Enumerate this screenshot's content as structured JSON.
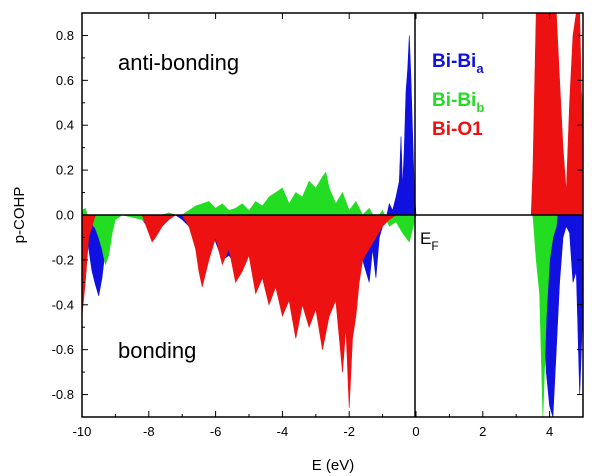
{
  "chart_data": {
    "type": "area",
    "xlabel": "E (eV)",
    "ylabel": "p-COHP",
    "xlim": [
      -10,
      5
    ],
    "ylim": [
      -0.9,
      0.9
    ],
    "xticks": [
      "-10",
      "-8",
      "-6",
      "-4",
      "-2",
      "0",
      "2",
      "4"
    ],
    "yticks": [
      "-0.8",
      "-0.6",
      "-0.4",
      "-0.2",
      "0.0",
      "0.2",
      "0.4",
      "0.6",
      "0.8"
    ],
    "grid": false,
    "legend_position": "top-right",
    "annotations": {
      "top": "anti-bonding",
      "bottom": "bonding",
      "fermi_main": "E",
      "fermi_sub": "F"
    },
    "series": [
      {
        "name_main": "Bi-Bi",
        "name_sub": "a",
        "color": "#1010e0",
        "x": [
          -10.0,
          -9.9,
          -9.8,
          -9.7,
          -9.6,
          -9.5,
          -9.4,
          -9.3,
          -9.2,
          -9.0,
          -8.5,
          -8.2,
          -8.0,
          -7.8,
          -7.6,
          -7.4,
          -7.2,
          -7.0,
          -6.8,
          -6.6,
          -6.5,
          -6.4,
          -6.3,
          -6.2,
          -6.0,
          -5.8,
          -5.6,
          -5.4,
          -5.2,
          -5.0,
          -4.8,
          -4.6,
          -4.4,
          -4.2,
          -4.0,
          -3.8,
          -3.6,
          -3.4,
          -3.2,
          -3.0,
          -2.8,
          -2.6,
          -2.4,
          -2.2,
          -2.0,
          -1.8,
          -1.6,
          -1.4,
          -1.3,
          -1.2,
          -1.1,
          -1.0,
          -0.9,
          -0.8,
          -0.7,
          -0.6,
          -0.5,
          -0.45,
          -0.4,
          -0.35,
          -0.3,
          -0.25,
          -0.2,
          -0.15,
          -0.1,
          -0.05,
          0.0,
          3.5,
          3.6,
          3.7,
          3.8,
          3.9,
          4.0,
          4.1,
          4.2,
          4.3,
          4.4,
          4.5,
          4.6,
          4.7,
          4.8,
          4.9,
          5.0
        ],
        "values": [
          -0.02,
          -0.05,
          -0.15,
          -0.25,
          -0.31,
          -0.36,
          -0.28,
          -0.15,
          -0.05,
          0.0,
          0.0,
          -0.02,
          -0.06,
          -0.09,
          -0.05,
          -0.02,
          0.0,
          -0.02,
          -0.05,
          -0.12,
          -0.2,
          -0.24,
          -0.1,
          -0.05,
          -0.12,
          -0.2,
          -0.18,
          -0.22,
          -0.15,
          -0.1,
          -0.19,
          -0.25,
          -0.22,
          -0.3,
          -0.35,
          -0.25,
          -0.2,
          -0.15,
          -0.18,
          -0.1,
          -0.12,
          -0.08,
          -0.15,
          -0.3,
          -0.1,
          -0.15,
          -0.2,
          -0.3,
          -0.15,
          -0.28,
          -0.1,
          -0.05,
          -0.02,
          0.05,
          0.02,
          0.08,
          0.15,
          0.35,
          0.12,
          0.3,
          0.55,
          0.65,
          0.8,
          0.6,
          0.35,
          0.12,
          0.0,
          0.0,
          -0.1,
          -0.3,
          -0.45,
          -0.7,
          -0.85,
          -0.9,
          -0.6,
          -0.3,
          -0.1,
          -0.05,
          -0.08,
          -0.3,
          -0.25,
          -0.8,
          -0.4
        ]
      },
      {
        "name_main": "Bi-Bi",
        "name_sub": "b",
        "color": "#22dd22",
        "x": [
          -10.0,
          -9.9,
          -9.8,
          -9.7,
          -9.6,
          -9.5,
          -9.4,
          -9.3,
          -9.2,
          -9.1,
          -9.0,
          -8.8,
          -8.2,
          -8.0,
          -7.8,
          -7.6,
          -7.4,
          -7.2,
          -7.0,
          -6.8,
          -6.6,
          -6.4,
          -6.2,
          -6.0,
          -5.8,
          -5.6,
          -5.4,
          -5.2,
          -5.0,
          -4.8,
          -4.6,
          -4.4,
          -4.2,
          -4.0,
          -3.8,
          -3.6,
          -3.4,
          -3.2,
          -3.0,
          -2.8,
          -2.7,
          -2.6,
          -2.4,
          -2.2,
          -2.0,
          -1.8,
          -1.6,
          -1.4,
          -1.2,
          -1.0,
          -0.8,
          -0.6,
          -0.4,
          -0.2,
          0.0,
          3.5,
          3.6,
          3.7,
          3.8,
          3.9,
          4.0,
          4.1,
          4.2,
          4.3,
          4.4,
          4.5,
          4.6,
          4.7,
          4.8,
          4.85,
          4.9,
          4.95,
          5.0
        ],
        "values": [
          0.02,
          0.03,
          -0.02,
          -0.04,
          -0.06,
          -0.1,
          -0.15,
          -0.22,
          -0.18,
          -0.08,
          -0.02,
          0.0,
          -0.02,
          -0.05,
          -0.03,
          0.0,
          0.01,
          0.0,
          0.0,
          0.02,
          0.04,
          0.05,
          0.06,
          0.03,
          0.05,
          0.02,
          0.03,
          0.05,
          0.02,
          0.06,
          0.04,
          0.08,
          0.1,
          0.12,
          0.05,
          0.1,
          0.08,
          0.15,
          0.12,
          0.17,
          0.19,
          0.12,
          0.05,
          0.1,
          0.02,
          0.06,
          0.0,
          0.03,
          -0.02,
          0.02,
          -0.05,
          -0.03,
          -0.08,
          -0.12,
          0.0,
          0.0,
          -0.2,
          -0.35,
          -0.9,
          -0.45,
          -0.2,
          -0.1,
          -0.05,
          0.1,
          0.2,
          0.05,
          0.1,
          0.3,
          0.15,
          0.6,
          0.75,
          0.55,
          0.5
        ]
      },
      {
        "name_main": "Bi-O1",
        "name_sub": "",
        "color": "#ee1111",
        "x": [
          -10.0,
          -9.9,
          -9.8,
          -9.7,
          -9.6,
          -8.2,
          -8.0,
          -7.9,
          -7.8,
          -7.6,
          -7.4,
          -7.2,
          -7.0,
          -6.8,
          -6.6,
          -6.5,
          -6.4,
          -6.2,
          -6.0,
          -5.8,
          -5.6,
          -5.4,
          -5.2,
          -5.0,
          -4.8,
          -4.6,
          -4.4,
          -4.2,
          -4.0,
          -3.8,
          -3.6,
          -3.4,
          -3.2,
          -3.0,
          -2.8,
          -2.6,
          -2.4,
          -2.2,
          -2.1,
          -2.0,
          -1.9,
          -1.8,
          -1.7,
          -1.6,
          -1.4,
          -1.2,
          -1.0,
          -0.8,
          -0.6,
          -0.4,
          -0.2,
          0.0,
          3.45,
          3.5,
          3.6,
          3.7,
          3.8,
          3.9,
          4.0,
          4.1,
          4.2,
          4.3,
          4.4,
          4.5,
          4.6,
          4.7,
          4.8,
          4.9,
          5.0
        ],
        "values": [
          -0.45,
          -0.3,
          -0.1,
          -0.05,
          0.0,
          0.0,
          -0.08,
          -0.12,
          -0.1,
          -0.05,
          -0.02,
          0.0,
          0.0,
          -0.05,
          -0.15,
          -0.25,
          -0.32,
          -0.2,
          -0.1,
          -0.22,
          -0.15,
          -0.3,
          -0.25,
          -0.18,
          -0.35,
          -0.28,
          -0.4,
          -0.32,
          -0.45,
          -0.38,
          -0.55,
          -0.4,
          -0.5,
          -0.42,
          -0.6,
          -0.45,
          -0.38,
          -0.7,
          -0.5,
          -0.86,
          -0.55,
          -0.45,
          -0.3,
          -0.2,
          -0.15,
          -0.1,
          -0.05,
          -0.02,
          0.0,
          0.0,
          0.0,
          0.0,
          0.0,
          0.2,
          0.9,
          0.9,
          0.9,
          0.9,
          0.9,
          0.9,
          0.9,
          0.6,
          0.3,
          0.1,
          0.5,
          0.8,
          0.9,
          0.9,
          0.2
        ]
      }
    ]
  }
}
